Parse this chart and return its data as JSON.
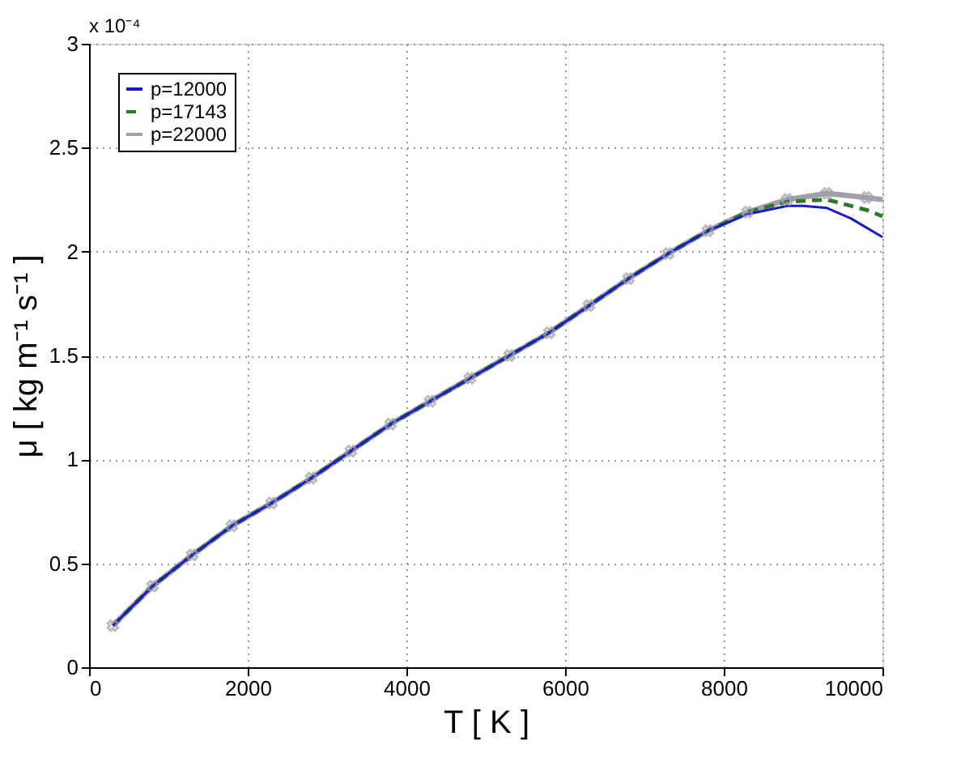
{
  "chart_data": {
    "type": "line",
    "xlabel": "T [ K ]",
    "ylabel": "μ [ kg m⁻¹ s⁻¹ ]",
    "annotations": [
      "x 10⁻⁴"
    ],
    "xlim": [
      0,
      10000
    ],
    "xticks": [
      0,
      2000,
      4000,
      6000,
      8000,
      10000
    ],
    "ylim": [
      0,
      3
    ],
    "yticks": [
      0,
      0.5,
      1,
      1.5,
      2,
      2.5,
      3
    ],
    "grid": true,
    "legend": "top left",
    "series": [
      {
        "name": "p=12000",
        "color": "#1a1acc",
        "line_style": "solid",
        "marker": "none",
        "x": [
          300,
          800,
          1300,
          1800,
          2300,
          2800,
          3300,
          3800,
          4300,
          4800,
          5300,
          5800,
          6300,
          6800,
          7300,
          7800,
          8300,
          8800,
          9000,
          9300,
          9600,
          10000
        ],
        "values": [
          0.2,
          0.39,
          0.54,
          0.68,
          0.79,
          0.91,
          1.04,
          1.17,
          1.28,
          1.39,
          1.5,
          1.61,
          1.74,
          1.87,
          1.99,
          2.1,
          2.18,
          2.22,
          2.22,
          2.21,
          2.16,
          2.07
        ]
      },
      {
        "name": "p=17143",
        "color": "#2a7a2a",
        "line_style": "dashed",
        "marker": "none",
        "x": [
          300,
          800,
          1300,
          1800,
          2300,
          2800,
          3300,
          3800,
          4300,
          4800,
          5300,
          5800,
          6300,
          6800,
          7300,
          7800,
          8300,
          8800,
          9300,
          9800,
          10000
        ],
        "values": [
          0.2,
          0.39,
          0.54,
          0.68,
          0.79,
          0.91,
          1.04,
          1.17,
          1.28,
          1.39,
          1.5,
          1.61,
          1.74,
          1.87,
          1.99,
          2.1,
          2.19,
          2.24,
          2.25,
          2.2,
          2.17
        ]
      },
      {
        "name": "p=22000",
        "color": "#a0a0aa",
        "line_style": "solid",
        "marker": "cross",
        "x": [
          300,
          800,
          1300,
          1800,
          2300,
          2800,
          3300,
          3800,
          4300,
          4800,
          5300,
          5800,
          6300,
          6800,
          7300,
          7800,
          8300,
          8800,
          9300,
          9800,
          10000
        ],
        "values": [
          0.2,
          0.39,
          0.54,
          0.68,
          0.79,
          0.91,
          1.04,
          1.17,
          1.28,
          1.39,
          1.5,
          1.61,
          1.74,
          1.87,
          1.99,
          2.1,
          2.19,
          2.25,
          2.28,
          2.26,
          2.25
        ]
      }
    ]
  }
}
